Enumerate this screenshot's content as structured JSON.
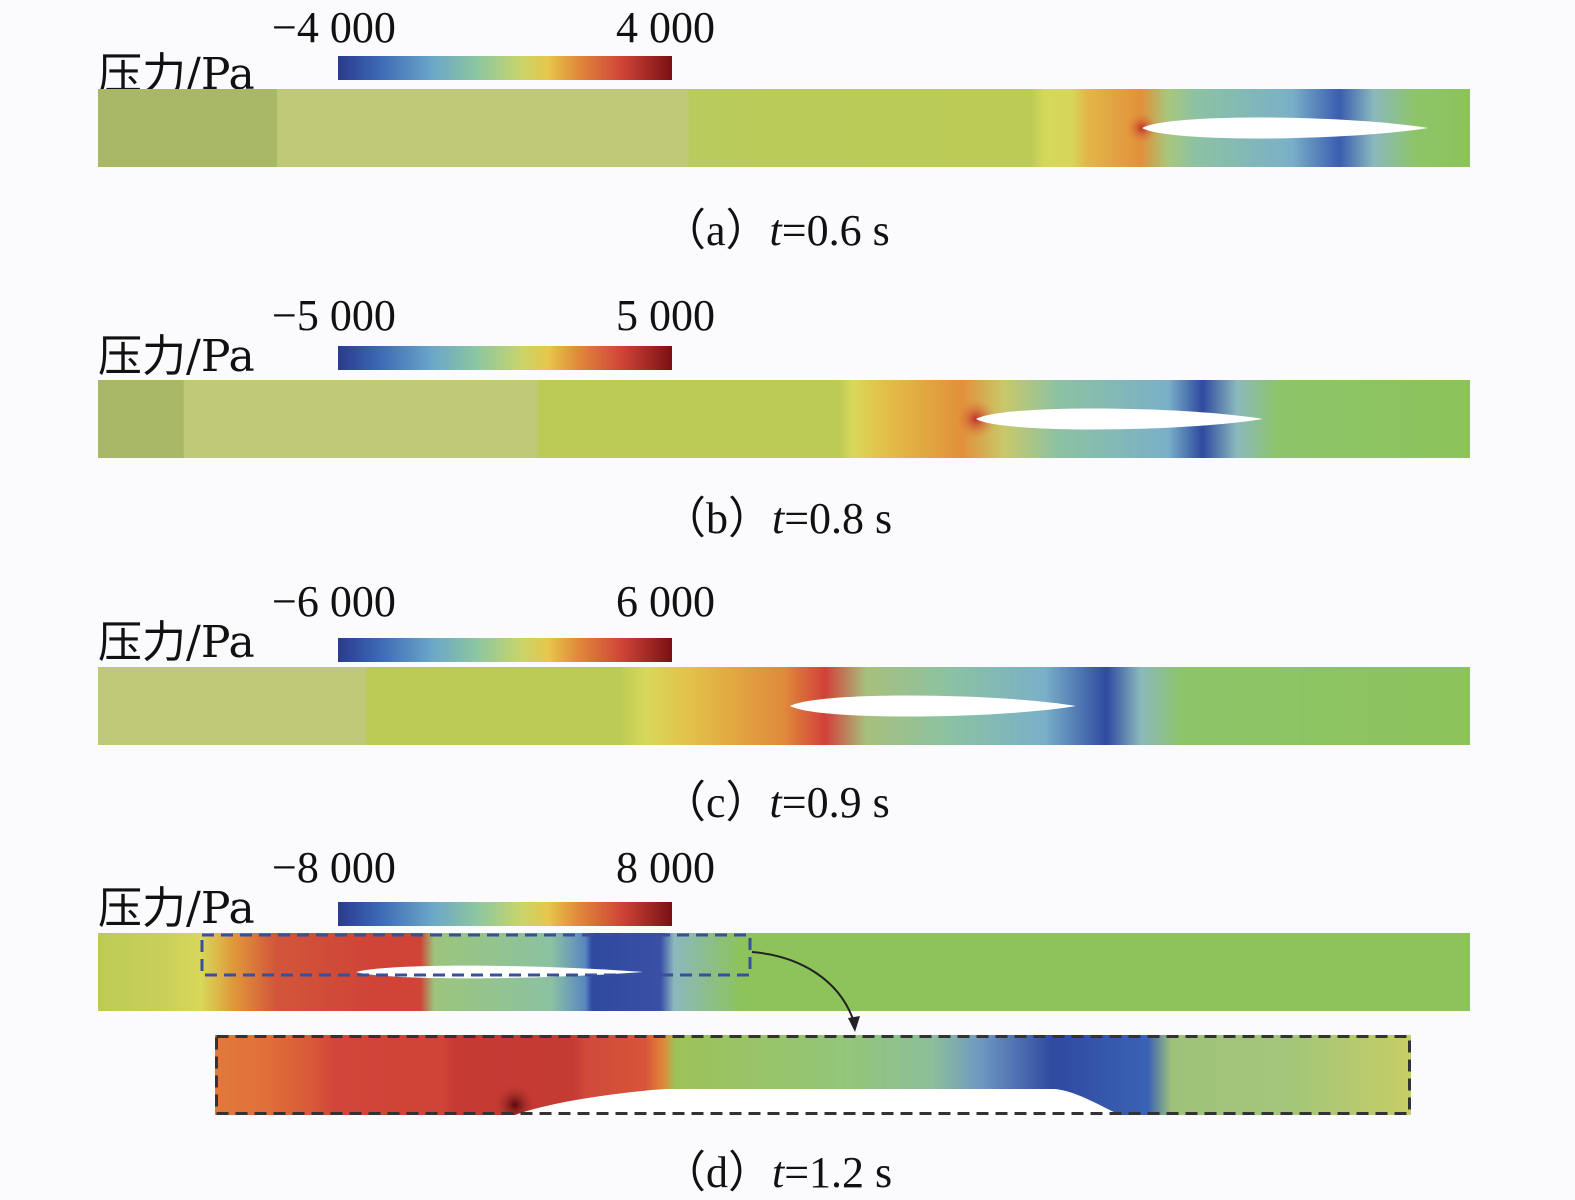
{
  "colormap": {
    "name": "jet-like",
    "stops": [
      "#2a3a8f",
      "#3b67b3",
      "#6aa6c9",
      "#8ec7a0",
      "#c9d46a",
      "#e6c74a",
      "#e0893a",
      "#cf4437",
      "#7a1014"
    ]
  },
  "panels": [
    {
      "id": "a",
      "colorbar": {
        "title": "压力/Pa",
        "min": "−4 000",
        "max": "4 000"
      },
      "caption": {
        "prefix": "（a）",
        "var": "t",
        "rest": "=0.6 s"
      }
    },
    {
      "id": "b",
      "colorbar": {
        "title": "压力/Pa",
        "min": "−5 000",
        "max": "5 000"
      },
      "caption": {
        "prefix": "（b）",
        "var": "t",
        "rest": "=0.8 s"
      }
    },
    {
      "id": "c",
      "colorbar": {
        "title": "压力/Pa",
        "min": "−6 000",
        "max": "6 000"
      },
      "caption": {
        "prefix": "（c）",
        "var": "t",
        "rest": "=0.9 s"
      }
    },
    {
      "id": "d",
      "colorbar": {
        "title": "压力/Pa",
        "min": "−8 000",
        "max": "8 000"
      },
      "caption": {
        "prefix": "（d）",
        "var": "t",
        "rest": "=1.2 s"
      }
    }
  ]
}
